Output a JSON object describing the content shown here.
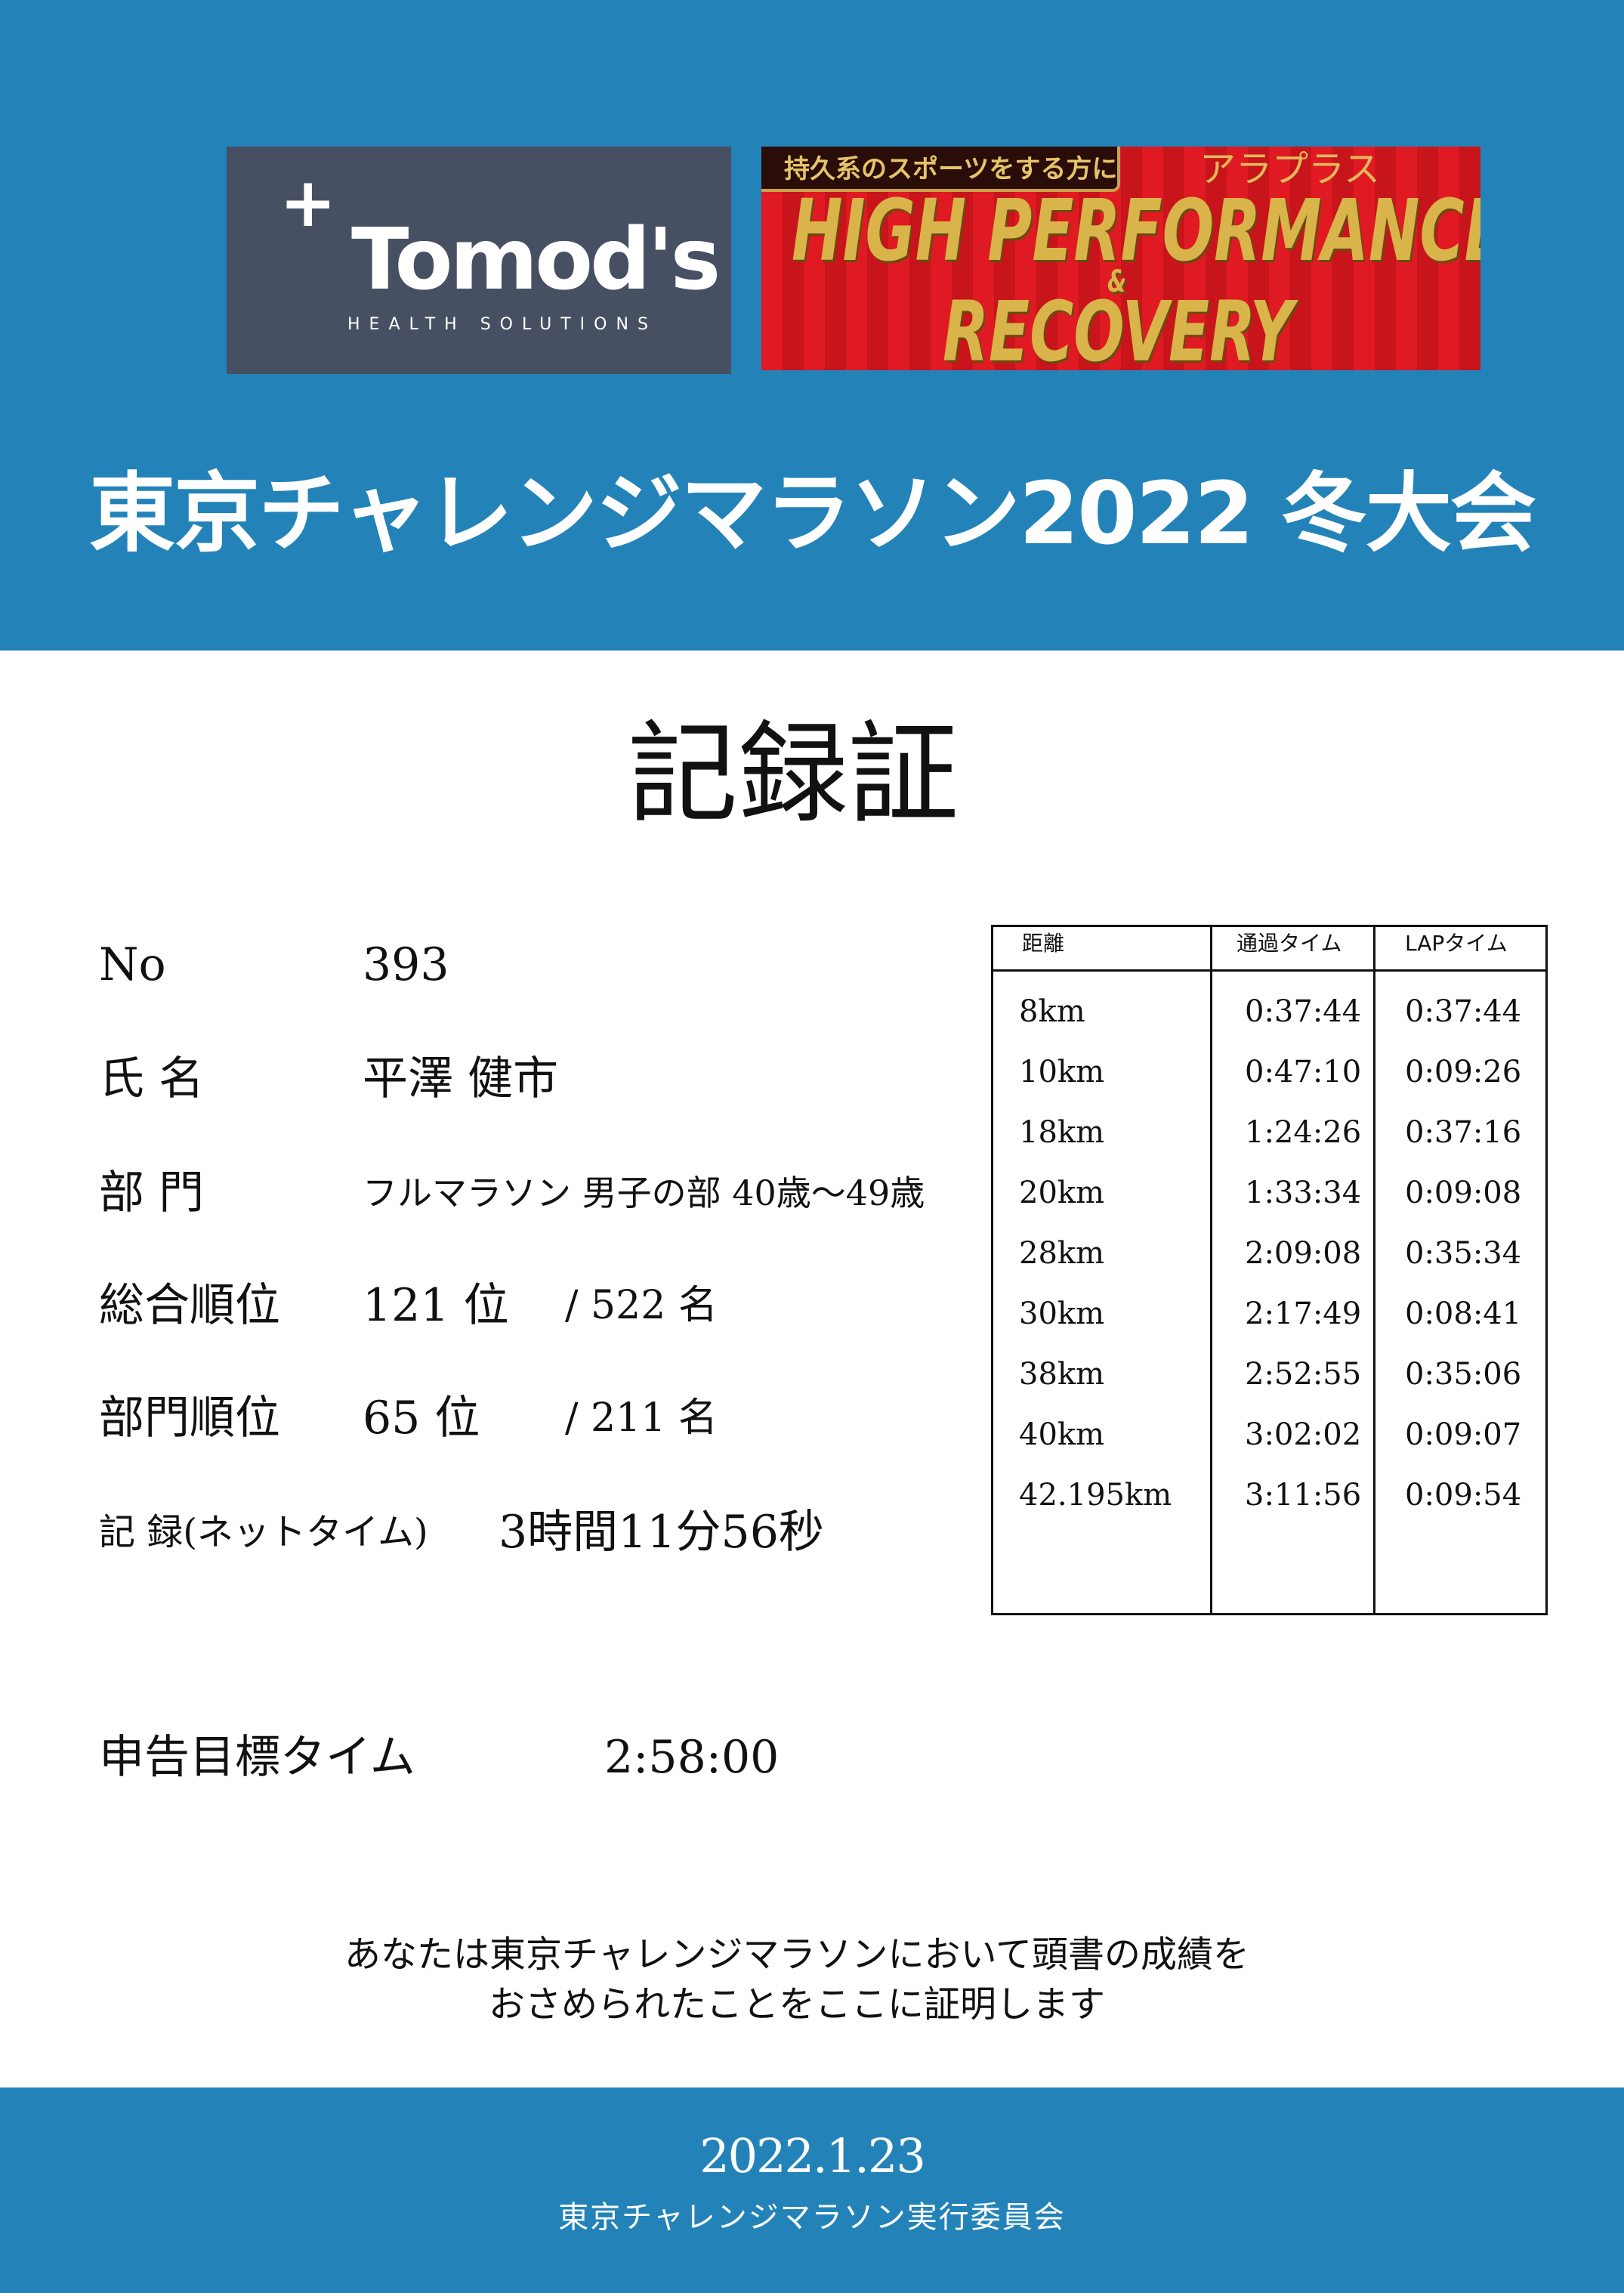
{
  "header": {
    "sponsor_logo": {
      "mark": "+",
      "name": "Tomod's",
      "tagline": "HEALTH SOLUTIONS"
    },
    "banner": {
      "tag": "持久系のスポーツをする方に",
      "brand": "アラプラス",
      "line1": "HIGH PERFORMANCE",
      "amp": "&",
      "line2": "RECOVERY"
    },
    "event_title": "東京チャレンジマラソン2022 冬大会",
    "color": "#2383b9"
  },
  "certificate": {
    "title": "記録証",
    "fields": [
      {
        "label": "No",
        "value": "393"
      },
      {
        "label": "氏 名",
        "value": "平澤 健市"
      },
      {
        "label": "部 門",
        "value": "フルマラソン 男子の部 40歳〜49歳"
      },
      {
        "label": "総合順位",
        "value": "121 位",
        "total": "/ 522 名"
      },
      {
        "label": "部門順位",
        "value": "65 位",
        "total": "/ 211 名"
      },
      {
        "label": "記 録(ネットタイム)",
        "value": "3時間11分56秒"
      }
    ],
    "target": {
      "label": "申告目標タイム",
      "value": "2:58:00"
    },
    "statement": [
      "あなたは東京チャレンジマラソンにおいて頭書の成績を",
      "おさめられたことをここに証明します"
    ]
  },
  "splits": {
    "headers": [
      "距離",
      "通過タイム",
      "LAPタイム"
    ],
    "rows": [
      [
        "8km",
        "0:37:44",
        "0:37:44"
      ],
      [
        "10km",
        "0:47:10",
        "0:09:26"
      ],
      [
        "18km",
        "1:24:26",
        "0:37:16"
      ],
      [
        "20km",
        "1:33:34",
        "0:09:08"
      ],
      [
        "28km",
        "2:09:08",
        "0:35:34"
      ],
      [
        "30km",
        "2:17:49",
        "0:08:41"
      ],
      [
        "38km",
        "2:52:55",
        "0:35:06"
      ],
      [
        "40km",
        "3:02:02",
        "0:09:07"
      ],
      [
        "42.195km",
        "3:11:56",
        "0:09:54"
      ]
    ]
  },
  "footer": {
    "date": "2022.1.23",
    "organizer": "東京チャレンジマラソン実行委員会"
  }
}
